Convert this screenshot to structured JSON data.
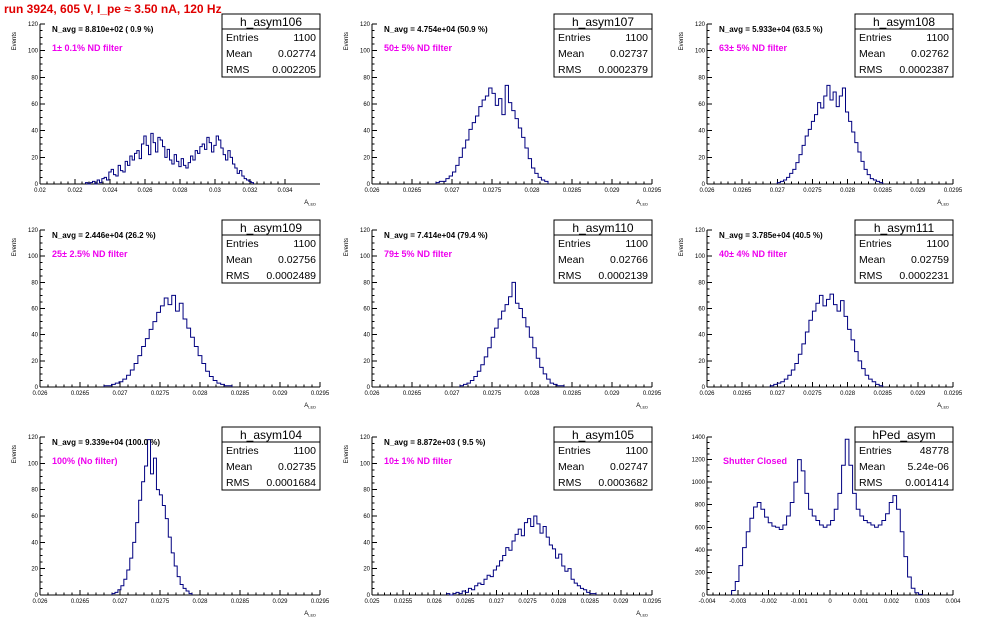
{
  "header": {
    "title": "run 3924,   605 V, I_pe ≈ 3.50 nA, 120 Hz"
  },
  "colors": {
    "title": "#e00000",
    "histogram": "#000080",
    "annotation": "#ee00ee",
    "axes": "#000000"
  },
  "chart_data": [
    {
      "type": "histogram",
      "name": "h_asym106",
      "stats": {
        "entries": "1100",
        "mean": "0.02774",
        "rms": "0.002205"
      },
      "stat_labels": [
        "Entries",
        "Mean",
        "RMS"
      ],
      "n_avg": "N_avg = 8.810e+02 ( 0.9 %)",
      "filter_note": "1± 0.1% ND filter",
      "ylabel": "Events",
      "xlabel": "A_LED",
      "xlim": [
        0.02,
        0.036
      ],
      "ylim": [
        0,
        120
      ],
      "xticks": [
        "0.02",
        "0.022",
        "0.024",
        "0.026",
        "0.028",
        "0.03",
        "0.032",
        "0.034"
      ],
      "yticks": [
        "0",
        "20",
        "40",
        "60",
        "80",
        "100",
        "120"
      ],
      "bin_range": [
        0.0226,
        0.0322
      ],
      "counts": [
        1,
        0,
        1,
        2,
        0,
        3,
        1,
        4,
        5,
        3,
        9,
        11,
        7,
        6,
        14,
        10,
        9,
        17,
        14,
        21,
        18,
        23,
        25,
        19,
        30,
        36,
        29,
        22,
        38,
        31,
        24,
        35,
        33,
        28,
        20,
        26,
        18,
        15,
        22,
        17,
        13,
        19,
        14,
        12,
        16,
        21,
        18,
        25,
        23,
        28,
        30,
        26,
        35,
        31,
        24,
        29,
        36,
        33,
        27,
        22,
        18,
        25,
        20,
        15,
        12,
        8,
        10,
        6,
        4,
        3,
        2,
        1
      ]
    },
    {
      "type": "histogram",
      "name": "h_asym107",
      "stats": {
        "entries": "1100",
        "mean": "0.02737",
        "rms": "0.0002379"
      },
      "stat_labels": [
        "Entries",
        "Mean",
        "RMS"
      ],
      "n_avg": "N_avg = 4.754e+04 (50.9 %)",
      "filter_note": "50± 5% ND filter",
      "ylabel": "Events",
      "xlabel": "A_LED",
      "xlim": [
        0.026,
        0.0295
      ],
      "ylim": [
        0,
        120
      ],
      "xticks": [
        "0.026",
        "0.0265",
        "0.027",
        "0.0275",
        "0.028",
        "0.0285",
        "0.029",
        "0.0295"
      ],
      "yticks": [
        "0",
        "20",
        "40",
        "60",
        "80",
        "100",
        "120"
      ],
      "bin_range": [
        0.0268,
        0.0282
      ],
      "counts": [
        1,
        2,
        2,
        4,
        6,
        9,
        14,
        20,
        27,
        33,
        41,
        46,
        51,
        58,
        63,
        66,
        72,
        68,
        59,
        64,
        52,
        74,
        61,
        55,
        49,
        42,
        35,
        27,
        19,
        12,
        8,
        5,
        3,
        2
      ]
    },
    {
      "type": "histogram",
      "name": "h_asym108",
      "stats": {
        "entries": "1100",
        "mean": "0.02762",
        "rms": "0.0002387"
      },
      "stat_labels": [
        "Entries",
        "Mean",
        "RMS"
      ],
      "n_avg": "N_avg = 5.933e+04 (63.5 %)",
      "filter_note": "63± 5% ND filter",
      "ylabel": "Events",
      "xlabel": "A_LED",
      "xlim": [
        0.026,
        0.0295
      ],
      "ylim": [
        0,
        120
      ],
      "xticks": [
        "0.026",
        "0.0265",
        "0.027",
        "0.0275",
        "0.028",
        "0.0285",
        "0.029",
        "0.0295"
      ],
      "yticks": [
        "0",
        "20",
        "40",
        "60",
        "80",
        "100",
        "120"
      ],
      "bin_range": [
        0.027,
        0.0285
      ],
      "counts": [
        1,
        2,
        3,
        5,
        8,
        11,
        16,
        22,
        29,
        36,
        41,
        47,
        52,
        61,
        57,
        66,
        74,
        63,
        69,
        58,
        66,
        72,
        54,
        47,
        39,
        31,
        24,
        17,
        11,
        7,
        4,
        3,
        2,
        1
      ]
    },
    {
      "type": "histogram",
      "name": "h_asym109",
      "stats": {
        "entries": "1100",
        "mean": "0.02756",
        "rms": "0.0002489"
      },
      "stat_labels": [
        "Entries",
        "Mean",
        "RMS"
      ],
      "n_avg": "N_avg = 2.446e+04 (26.2 %)",
      "filter_note": "25± 2.5% ND filter",
      "ylabel": "Events",
      "xlabel": "A_LED",
      "xlim": [
        0.026,
        0.0295
      ],
      "ylim": [
        0,
        120
      ],
      "xticks": [
        "0.026",
        "0.0265",
        "0.027",
        "0.0275",
        "0.028",
        "0.0285",
        "0.029",
        "0.0295"
      ],
      "yticks": [
        "0",
        "20",
        "40",
        "60",
        "80",
        "100",
        "120"
      ],
      "bin_range": [
        0.0268,
        0.0284
      ],
      "counts": [
        1,
        1,
        2,
        3,
        4,
        6,
        9,
        13,
        18,
        24,
        31,
        37,
        44,
        50,
        57,
        62,
        68,
        63,
        70,
        58,
        64,
        52,
        45,
        38,
        31,
        24,
        18,
        12,
        8,
        5,
        3,
        2,
        1,
        1
      ]
    },
    {
      "type": "histogram",
      "name": "h_asym110",
      "stats": {
        "entries": "1100",
        "mean": "0.02766",
        "rms": "0.0002139"
      },
      "stat_labels": [
        "Entries",
        "Mean",
        "RMS"
      ],
      "n_avg": "N_avg = 7.414e+04 (79.4 %)",
      "filter_note": "79± 5% ND filter",
      "ylabel": "Events",
      "xlabel": "A_LED",
      "xlim": [
        0.026,
        0.0295
      ],
      "ylim": [
        0,
        120
      ],
      "xticks": [
        "0.026",
        "0.0265",
        "0.027",
        "0.0275",
        "0.028",
        "0.0285",
        "0.029",
        "0.0295"
      ],
      "yticks": [
        "0",
        "20",
        "40",
        "60",
        "80",
        "100",
        "120"
      ],
      "bin_range": [
        0.0271,
        0.0284
      ],
      "counts": [
        1,
        2,
        3,
        5,
        8,
        12,
        17,
        23,
        30,
        38,
        45,
        52,
        58,
        63,
        69,
        80,
        64,
        60,
        53,
        46,
        38,
        30,
        22,
        15,
        10,
        6,
        3,
        2,
        1,
        1
      ]
    },
    {
      "type": "histogram",
      "name": "h_asym111",
      "stats": {
        "entries": "1100",
        "mean": "0.02759",
        "rms": "0.0002231"
      },
      "stat_labels": [
        "Entries",
        "Mean",
        "RMS"
      ],
      "n_avg": "N_avg = 3.785e+04 (40.5 %)",
      "filter_note": "40± 4% ND filter",
      "ylabel": "Events",
      "xlabel": "A_LED",
      "xlim": [
        0.026,
        0.0295
      ],
      "ylim": [
        0,
        120
      ],
      "xticks": [
        "0.026",
        "0.0265",
        "0.027",
        "0.0275",
        "0.028",
        "0.0285",
        "0.029",
        "0.0295"
      ],
      "yticks": [
        "0",
        "20",
        "40",
        "60",
        "80",
        "100",
        "120"
      ],
      "bin_range": [
        0.0269,
        0.0285
      ],
      "counts": [
        1,
        2,
        3,
        4,
        6,
        9,
        13,
        18,
        25,
        33,
        42,
        51,
        58,
        64,
        70,
        62,
        67,
        71,
        63,
        58,
        66,
        54,
        44,
        36,
        27,
        20,
        14,
        9,
        6,
        4,
        2,
        1
      ]
    },
    {
      "type": "histogram",
      "name": "h_asym104",
      "stats": {
        "entries": "1100",
        "mean": "0.02735",
        "rms": "0.0001684"
      },
      "stat_labels": [
        "Entries",
        "Mean",
        "RMS"
      ],
      "n_avg": "N_avg = 9.339e+04 (100.0 %)",
      "filter_note": "100% (No filter)",
      "ylabel": "Events",
      "xlabel": "A_LED",
      "xlim": [
        0.026,
        0.0295
      ],
      "ylim": [
        0,
        120
      ],
      "xticks": [
        "0.026",
        "0.0265",
        "0.027",
        "0.0275",
        "0.028",
        "0.0285",
        "0.029",
        "0.0295"
      ],
      "yticks": [
        "0",
        "20",
        "40",
        "60",
        "80",
        "100",
        "120"
      ],
      "bin_range": [
        0.0269,
        0.0279
      ],
      "counts": [
        1,
        2,
        4,
        7,
        12,
        19,
        28,
        40,
        55,
        72,
        86,
        98,
        118,
        92,
        104,
        80,
        76,
        68,
        58,
        44,
        32,
        22,
        14,
        8,
        5,
        3,
        1
      ]
    },
    {
      "type": "histogram",
      "name": "h_asym105",
      "stats": {
        "entries": "1100",
        "mean": "0.02747",
        "rms": "0.0003682"
      },
      "stat_labels": [
        "Entries",
        "Mean",
        "RMS"
      ],
      "n_avg": "N_avg = 8.872e+03 ( 9.5 %)",
      "filter_note": "10± 1% ND filter",
      "ylabel": "Events",
      "xlabel": "A_LED",
      "xlim": [
        0.025,
        0.0295
      ],
      "ylim": [
        0,
        120
      ],
      "xticks": [
        "0.025",
        "0.0255",
        "0.026",
        "0.0265",
        "0.027",
        "0.0275",
        "0.028",
        "0.0285",
        "0.029",
        "0.0295"
      ],
      "yticks": [
        "0",
        "20",
        "40",
        "60",
        "80",
        "100",
        "120"
      ],
      "bin_range": [
        0.0262,
        0.0286
      ],
      "counts": [
        1,
        0,
        1,
        2,
        1,
        3,
        2,
        5,
        4,
        7,
        9,
        8,
        12,
        15,
        14,
        19,
        22,
        26,
        30,
        36,
        34,
        41,
        46,
        50,
        45,
        55,
        58,
        52,
        60,
        54,
        47,
        52,
        44,
        38,
        35,
        28,
        31,
        22,
        18,
        20,
        12,
        9,
        7,
        5,
        4,
        2,
        1,
        1
      ]
    },
    {
      "type": "histogram",
      "name": "hPed_asym",
      "stats": {
        "entries": "48778",
        "mean": "5.24e-06",
        "rms": "0.001414"
      },
      "stat_labels": [
        "Entries",
        "Mean",
        "RMS"
      ],
      "n_avg": "",
      "filter_note": "Shutter Closed",
      "ylabel": "",
      "xlabel": "",
      "xlim": [
        -0.004,
        0.004
      ],
      "ylim": [
        0,
        1400
      ],
      "xticks": [
        "-0.004",
        "-0.003",
        "-0.002",
        "-0.001",
        "0",
        "0.001",
        "0.002",
        "0.003",
        "0.004"
      ],
      "yticks": [
        "0",
        "200",
        "400",
        "600",
        "800",
        "1000",
        "1200",
        "1400"
      ],
      "bin_range": [
        -0.0032,
        0.003
      ],
      "counts": [
        40,
        120,
        260,
        420,
        560,
        680,
        780,
        820,
        760,
        690,
        640,
        610,
        600,
        580,
        620,
        700,
        820,
        1000,
        1200,
        1100,
        900,
        760,
        700,
        660,
        620,
        600,
        620,
        660,
        760,
        900,
        1150,
        1380,
        1150,
        900,
        760,
        700,
        660,
        640,
        620,
        600,
        620,
        660,
        720,
        820,
        880,
        760,
        560,
        340,
        160,
        60,
        20,
        5
      ]
    }
  ]
}
